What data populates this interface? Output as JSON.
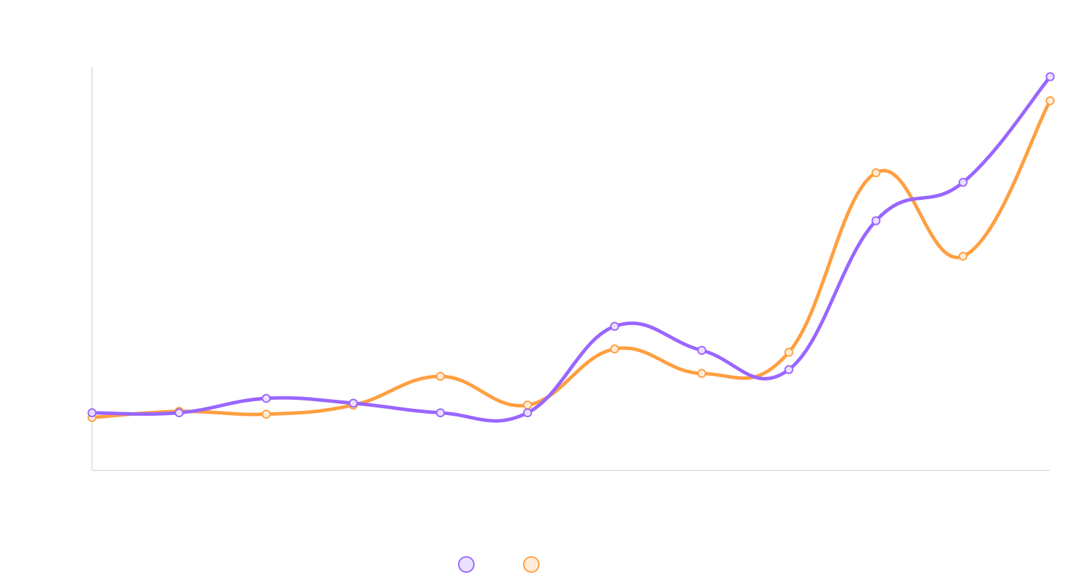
{
  "chart_data": {
    "type": "line",
    "title": "",
    "xlabel": "",
    "ylabel": "",
    "x": [
      1,
      2,
      3,
      4,
      5,
      6,
      7,
      8,
      9,
      10,
      11,
      12
    ],
    "ylim": [
      -12,
      72
    ],
    "grid": false,
    "legend": {
      "placement": "bottom-center",
      "show_labels": false
    },
    "series": [
      {
        "color": "#9966ff",
        "fill": "#ebe0ff",
        "values": [
          0,
          0,
          3,
          2,
          0,
          0,
          18,
          13,
          9,
          40,
          48,
          70
        ]
      },
      {
        "color": "#ff9f40",
        "fill": "#ffecd9",
        "values": [
          -1,
          0.3,
          -0.3,
          1.6,
          7.6,
          1.6,
          13.3,
          8.2,
          12.6,
          50,
          32.6,
          65
        ]
      }
    ]
  }
}
